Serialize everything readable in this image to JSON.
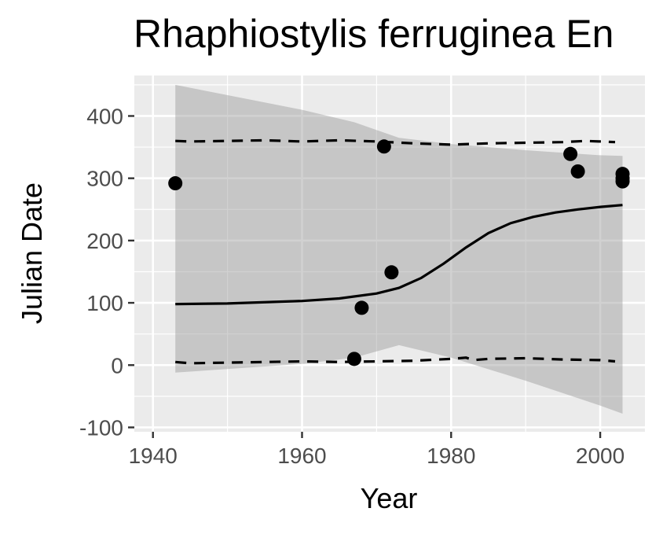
{
  "chart_data": {
    "type": "scatter",
    "title": "Rhaphiostylis ferruginea En",
    "xlabel": "Year",
    "ylabel": "Julian Date",
    "xlim": [
      1937.5,
      2006
    ],
    "ylim": [
      -107,
      465
    ],
    "x_ticks": [
      1940,
      1960,
      1980,
      2000
    ],
    "y_ticks": [
      -100,
      0,
      100,
      200,
      300,
      400
    ],
    "grid": true,
    "points": [
      {
        "x": 1943,
        "y": 292
      },
      {
        "x": 1967,
        "y": 10
      },
      {
        "x": 1968,
        "y": 92
      },
      {
        "x": 1971,
        "y": 351
      },
      {
        "x": 1972,
        "y": 149
      },
      {
        "x": 1996,
        "y": 339
      },
      {
        "x": 1997,
        "y": 311
      },
      {
        "x": 2003,
        "y": 307
      },
      {
        "x": 2003,
        "y": 300
      },
      {
        "x": 2003,
        "y": 295
      }
    ],
    "fit_line": {
      "x": [
        1943,
        1950,
        1960,
        1965,
        1970,
        1973,
        1976,
        1979,
        1982,
        1985,
        1988,
        1991,
        1994,
        1997,
        2000,
        2003
      ],
      "y": [
        98,
        99,
        103,
        107,
        115,
        124,
        140,
        163,
        189,
        212,
        228,
        238,
        245,
        250,
        254,
        257
      ]
    },
    "confidence_band": {
      "x": [
        1943,
        1960,
        1967,
        1973,
        1980,
        1990,
        2000,
        2003
      ],
      "upper": [
        450,
        410,
        390,
        365,
        355,
        345,
        337,
        336
      ],
      "lower": [
        -12,
        2,
        12,
        32,
        12,
        -25,
        -65,
        -78
      ]
    },
    "upper_dashed": {
      "x": [
        1943,
        1945,
        1950,
        1955,
        1960,
        1965,
        1970,
        1975,
        1980,
        1985,
        1990,
        1995,
        1998,
        2000,
        2002
      ],
      "y": [
        360,
        359,
        360,
        361,
        359,
        361,
        359,
        356,
        354,
        356,
        357,
        358,
        360,
        359,
        358
      ]
    },
    "lower_dashed": {
      "x": [
        1943,
        1945,
        1950,
        1955,
        1960,
        1965,
        1970,
        1975,
        1980,
        1982,
        1983,
        1985,
        1990,
        1995,
        2000,
        2002
      ],
      "y": [
        5,
        3,
        4,
        5,
        6,
        5,
        6,
        7,
        10,
        12,
        8,
        10,
        11,
        9,
        8,
        6
      ]
    }
  }
}
